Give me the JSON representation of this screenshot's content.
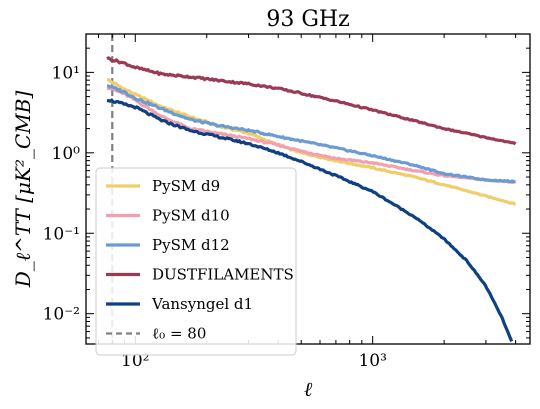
{
  "chart_data": {
    "type": "line",
    "title": "93 GHz",
    "xlabel": "ℓ",
    "ylabel": "D_ℓ^TT [μK²_CMB]",
    "xscale": "log",
    "yscale": "log",
    "xlim": [
      62,
      4600
    ],
    "ylim": [
      0.0042,
      30
    ],
    "xticks": [
      {
        "value": 100,
        "label": "10²"
      },
      {
        "value": 1000,
        "label": "10³"
      }
    ],
    "yticks": [
      {
        "value": 0.01,
        "label": "10⁻²"
      },
      {
        "value": 0.1,
        "label": "10⁻¹"
      },
      {
        "value": 1,
        "label": "10⁰"
      },
      {
        "value": 10,
        "label": "10¹"
      }
    ],
    "grid": false,
    "legend_position": "lower-left",
    "vline": {
      "x": 80,
      "label": "ℓ₀ = 80",
      "color": "#808080",
      "style": "dashed"
    },
    "series": [
      {
        "name": "PySM d9",
        "color": "#f0cd69",
        "x": [
          76,
          90,
          100,
          130,
          170,
          220,
          300,
          400,
          500,
          700,
          1000,
          1500,
          2000,
          3000,
          4000
        ],
        "y": [
          8.2,
          6.2,
          5.3,
          3.7,
          2.8,
          2.2,
          1.75,
          1.25,
          1.0,
          0.8,
          0.65,
          0.5,
          0.4,
          0.29,
          0.23
        ]
      },
      {
        "name": "PySM d10",
        "color": "#f2a0b0",
        "x": [
          76,
          90,
          100,
          130,
          170,
          220,
          300,
          400,
          500,
          700,
          1000,
          1500,
          2000,
          3000,
          4000
        ],
        "y": [
          6.6,
          5.4,
          4.5,
          2.8,
          2.0,
          1.75,
          1.5,
          1.25,
          1.05,
          0.85,
          0.75,
          0.6,
          0.52,
          0.46,
          0.43
        ]
      },
      {
        "name": "PySM d12",
        "color": "#6b9bd3",
        "x": [
          76,
          90,
          100,
          130,
          170,
          220,
          300,
          400,
          500,
          700,
          1000,
          1500,
          2000,
          3000,
          4000
        ],
        "y": [
          6.9,
          5.7,
          4.8,
          3.5,
          2.6,
          2.2,
          1.9,
          1.6,
          1.4,
          1.15,
          0.92,
          0.7,
          0.55,
          0.46,
          0.44
        ]
      },
      {
        "name": "DUSTFILAMENTS",
        "color": "#9b3a55",
        "x": [
          76,
          90,
          100,
          130,
          170,
          220,
          300,
          400,
          500,
          700,
          1000,
          1500,
          2000,
          3000,
          4000
        ],
        "y": [
          15,
          13,
          11.5,
          9.5,
          8.8,
          8.0,
          7.2,
          6.3,
          5.5,
          4.4,
          3.4,
          2.5,
          2.0,
          1.55,
          1.3
        ]
      },
      {
        "name": "Vansyngel d1",
        "color": "#0f4180",
        "x": [
          76,
          90,
          100,
          130,
          170,
          220,
          300,
          400,
          500,
          700,
          1000,
          1500,
          2000,
          2500,
          3000,
          3500,
          3850
        ],
        "y": [
          4.6,
          4.0,
          3.7,
          2.5,
          1.9,
          1.6,
          1.3,
          1.0,
          0.78,
          0.52,
          0.33,
          0.16,
          0.085,
          0.045,
          0.022,
          0.009,
          0.0045
        ]
      }
    ],
    "legend": [
      {
        "label": "PySM d9",
        "color": "#f0cd69",
        "style": "solid"
      },
      {
        "label": "PySM d10",
        "color": "#f2a0b0",
        "style": "solid"
      },
      {
        "label": "PySM d12",
        "color": "#6b9bd3",
        "style": "solid"
      },
      {
        "label": "DUSTFILAMENTS",
        "color": "#9b3a55",
        "style": "solid"
      },
      {
        "label": "Vansyngel d1",
        "color": "#0f4180",
        "style": "solid"
      },
      {
        "label": "ℓ₀ = 80",
        "color": "#808080",
        "style": "dashed"
      }
    ]
  }
}
